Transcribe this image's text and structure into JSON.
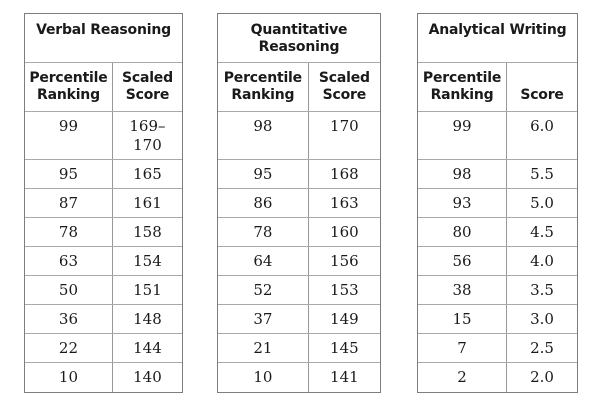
{
  "colors": {
    "page_background": "#ffffff",
    "text": "#1a1a1a",
    "border_outer": "#7d7d7d",
    "border_inner": "#aaaaaa",
    "border_divider": "#989898"
  },
  "chart_data": [
    {
      "type": "table",
      "title": "Verbal Reasoning",
      "columns": [
        "Percentile Ranking",
        "Scaled Score"
      ],
      "rows": [
        [
          "99",
          "169–\n170"
        ],
        [
          "95",
          "165"
        ],
        [
          "87",
          "161"
        ],
        [
          "78",
          "158"
        ],
        [
          "63",
          "154"
        ],
        [
          "50",
          "151"
        ],
        [
          "36",
          "148"
        ],
        [
          "22",
          "144"
        ],
        [
          "10",
          "140"
        ]
      ]
    },
    {
      "type": "table",
      "title": "Quantitative Reasoning",
      "columns": [
        "Percentile Ranking",
        "Scaled Score"
      ],
      "rows": [
        [
          "98",
          "170"
        ],
        [
          "95",
          "168"
        ],
        [
          "86",
          "163"
        ],
        [
          "78",
          "160"
        ],
        [
          "64",
          "156"
        ],
        [
          "52",
          "153"
        ],
        [
          "37",
          "149"
        ],
        [
          "21",
          "145"
        ],
        [
          "10",
          "141"
        ]
      ]
    },
    {
      "type": "table",
      "title": "Analytical Writing",
      "columns": [
        "Percentile Ranking",
        "Score"
      ],
      "rows": [
        [
          "99",
          "6.0"
        ],
        [
          "98",
          "5.5"
        ],
        [
          "93",
          "5.0"
        ],
        [
          "80",
          "4.5"
        ],
        [
          "56",
          "4.0"
        ],
        [
          "38",
          "3.5"
        ],
        [
          "15",
          "3.0"
        ],
        [
          "7",
          "2.5"
        ],
        [
          "2",
          "2.0"
        ]
      ]
    }
  ]
}
